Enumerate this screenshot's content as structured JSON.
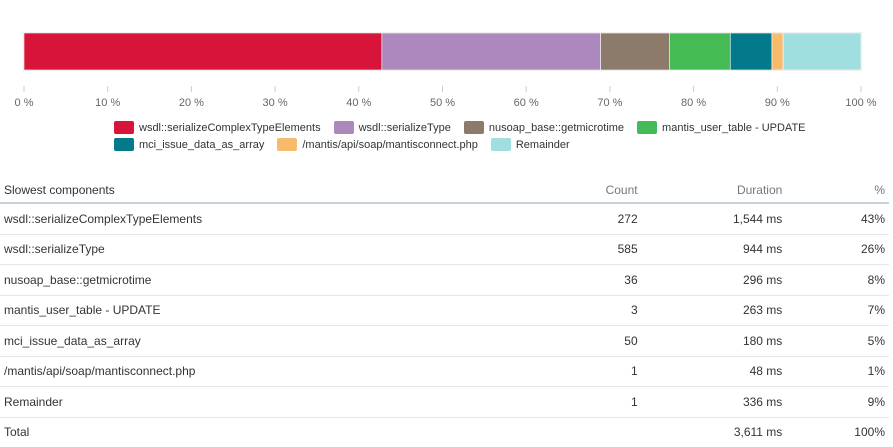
{
  "chart_data": {
    "type": "bar",
    "orientation": "horizontal-stacked-100",
    "xlim": [
      0,
      100
    ],
    "tick_labels": [
      "0 %",
      "10 %",
      "20 %",
      "30 %",
      "40 %",
      "50 %",
      "60 %",
      "70 %",
      "80 %",
      "90 %",
      "100 %"
    ],
    "series": [
      {
        "name": "wsdl::serializeComplexTypeElements",
        "value": 42.76,
        "color": "#d9143a"
      },
      {
        "name": "wsdl::serializeType",
        "value": 26.14,
        "color": "#ad88bd"
      },
      {
        "name": "nusoap_base::getmicrotime",
        "value": 8.2,
        "color": "#8c7b6b"
      },
      {
        "name": "mantis_user_table - UPDATE",
        "value": 7.28,
        "color": "#44bb55"
      },
      {
        "name": "mci_issue_data_as_array",
        "value": 4.98,
        "color": "#037a8b"
      },
      {
        "name": "/mantis/api/soap/mantisconnect.php",
        "value": 1.33,
        "color": "#f8bb6c"
      },
      {
        "name": "Remainder",
        "value": 9.31,
        "color": "#a1dedf"
      }
    ],
    "legend_position": "bottom"
  },
  "table": {
    "headers": {
      "name": "Slowest components",
      "count": "Count",
      "duration": "Duration",
      "pct": "%"
    },
    "rows": [
      {
        "name": "wsdl::serializeComplexTypeElements",
        "count": "272",
        "duration": "1,544 ms",
        "pct": "43%"
      },
      {
        "name": "wsdl::serializeType",
        "count": "585",
        "duration": "944 ms",
        "pct": "26%"
      },
      {
        "name": "nusoap_base::getmicrotime",
        "count": "36",
        "duration": "296 ms",
        "pct": "8%"
      },
      {
        "name": "mantis_user_table - UPDATE",
        "count": "3",
        "duration": "263 ms",
        "pct": "7%"
      },
      {
        "name": "mci_issue_data_as_array",
        "count": "50",
        "duration": "180 ms",
        "pct": "5%"
      },
      {
        "name": "/mantis/api/soap/mantisconnect.php",
        "count": "1",
        "duration": "48 ms",
        "pct": "1%"
      },
      {
        "name": "Remainder",
        "count": "1",
        "duration": "336 ms",
        "pct": "9%"
      }
    ],
    "total": {
      "name": "Total",
      "count": "",
      "duration": "3,611 ms",
      "pct": "100%"
    }
  }
}
